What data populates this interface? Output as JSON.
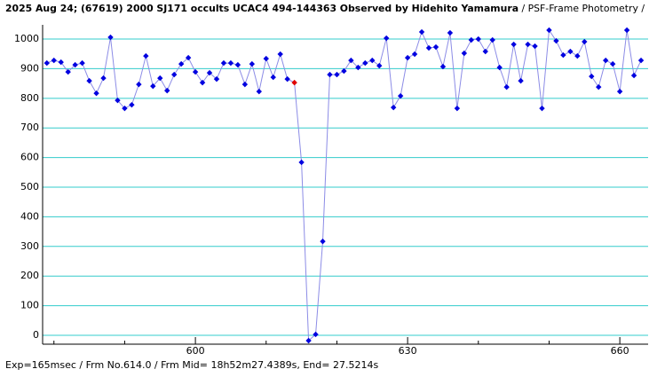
{
  "chart_data": {
    "type": "line",
    "title": "2025 Aug 24; (67619) 2000 SJ171 occults UCAC4 494-144363 Observed by Hidehito Yamamura",
    "subtitle": "/ PSF-Frame Photometry /",
    "footer": "Exp=165msec / Frm No.614.0 / Frm Mid= 18h52m27.4389s,  End= 27.5214s",
    "x": [
      579,
      580,
      581,
      582,
      583,
      584,
      585,
      586,
      587,
      588,
      589,
      590,
      591,
      592,
      593,
      594,
      595,
      596,
      597,
      598,
      599,
      600,
      601,
      602,
      603,
      604,
      605,
      606,
      607,
      608,
      609,
      610,
      611,
      612,
      613,
      614,
      615,
      616,
      617,
      618,
      619,
      620,
      621,
      622,
      623,
      624,
      625,
      626,
      627,
      628,
      629,
      630,
      631,
      632,
      633,
      634,
      635,
      636,
      637,
      638,
      639,
      640,
      641,
      642,
      643,
      644,
      645,
      646,
      647,
      648,
      649,
      650,
      651,
      652,
      653,
      654,
      655,
      656,
      657,
      658,
      659,
      660,
      661,
      662,
      663
    ],
    "series": [
      {
        "color": "#0000e0",
        "line_color": "#8c8ce6",
        "values": [
          919,
          928,
          922,
          889,
          913,
          919,
          859,
          817,
          868,
          1006,
          793,
          766,
          778,
          847,
          943,
          841,
          868,
          826,
          880,
          916,
          937,
          889,
          853,
          886,
          865,
          919,
          919,
          913,
          847,
          916,
          823,
          934,
          871,
          949,
          865,
          853,
          584,
          -18,
          3,
          317,
          880,
          880,
          892,
          928,
          904,
          919,
          928,
          910,
          1003,
          769,
          808,
          937,
          949,
          1024,
          970,
          973,
          907,
          1021,
          766,
          952,
          997,
          1000,
          958,
          997,
          904,
          838,
          982,
          859,
          982,
          976,
          766,
          1030,
          994,
          946,
          958,
          943,
          991,
          874,
          838,
          928,
          916,
          823,
          1030,
          877,
          928
        ]
      }
    ],
    "highlight": {
      "x": 614,
      "color": "#e00000"
    },
    "xlim": [
      578.4,
      664.0
    ],
    "xticks": [
      600,
      630,
      660
    ],
    "x_minor_ticks": [
      580,
      590,
      610,
      620,
      640,
      650
    ],
    "ylim": [
      -30,
      1048
    ],
    "yticks": [
      0,
      100,
      200,
      300,
      400,
      500,
      600,
      700,
      800,
      900,
      1000
    ],
    "grid": true,
    "grid_color": "#33cccc"
  }
}
